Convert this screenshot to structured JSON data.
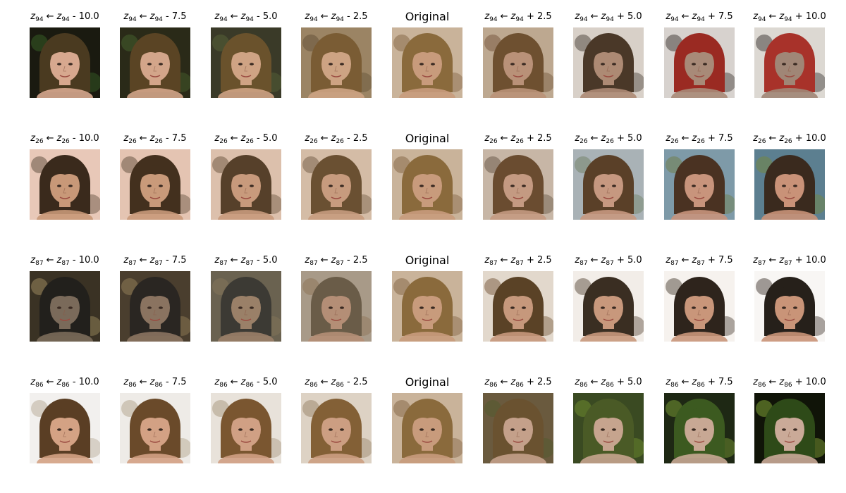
{
  "figure": {
    "rows": [
      {
        "latent": "94",
        "cells": [
          {
            "kind": "edit",
            "op": "-",
            "delta": "10.0",
            "bg": "#1a1a10",
            "hair": "#4a3a20",
            "skin": "#d7a88f",
            "accent": "#3c6b2a"
          },
          {
            "kind": "edit",
            "op": "-",
            "delta": "7.5",
            "bg": "#2a2a18",
            "hair": "#5a4424",
            "skin": "#d3a58a",
            "accent": "#4a6a30"
          },
          {
            "kind": "edit",
            "op": "-",
            "delta": "5.0",
            "bg": "#3a3a28",
            "hair": "#6a522c",
            "skin": "#cfa384",
            "accent": "#5d6b3a"
          },
          {
            "kind": "edit",
            "op": "-",
            "delta": "2.5",
            "bg": "#9b8464",
            "hair": "#7a5c34",
            "skin": "#cda383",
            "accent": "#5a4a30"
          },
          {
            "kind": "orig",
            "label": "Original",
            "bg": "#c9b39a",
            "hair": "#8a6a3c",
            "skin": "#c89b7c",
            "accent": "#7a5a3a"
          },
          {
            "kind": "edit",
            "op": "+",
            "delta": "2.5",
            "bg": "#bda890",
            "hair": "#6e5030",
            "skin": "#b99178",
            "accent": "#6a4a30"
          },
          {
            "kind": "edit",
            "op": "+",
            "delta": "5.0",
            "bg": "#d8d0c8",
            "hair": "#4a3828",
            "skin": "#ad8a74",
            "accent": "#3a3028"
          },
          {
            "kind": "edit",
            "op": "+",
            "delta": "7.5",
            "bg": "#d7d2ce",
            "hair": "#9a2a22",
            "skin": "#a88a78",
            "accent": "#2a2420"
          },
          {
            "kind": "edit",
            "op": "+",
            "delta": "10.0",
            "bg": "#dcd8d2",
            "hair": "#a8322a",
            "skin": "#a08676",
            "accent": "#262220"
          }
        ]
      },
      {
        "latent": "26",
        "cells": [
          {
            "kind": "edit",
            "op": "-",
            "delta": "10.0",
            "bg": "#e8c8b8",
            "hair": "#3a2a1c",
            "skin": "#c89878",
            "accent": "#4a3a2a"
          },
          {
            "kind": "edit",
            "op": "-",
            "delta": "7.5",
            "bg": "#e4c4b2",
            "hair": "#43301e",
            "skin": "#c99a7a",
            "accent": "#50402c"
          },
          {
            "kind": "edit",
            "op": "-",
            "delta": "5.0",
            "bg": "#dcc0ac",
            "hair": "#56402a",
            "skin": "#c89a7c",
            "accent": "#5a4630"
          },
          {
            "kind": "edit",
            "op": "-",
            "delta": "2.5",
            "bg": "#d4bca6",
            "hair": "#6a5032",
            "skin": "#c79b7e",
            "accent": "#66503a"
          },
          {
            "kind": "orig",
            "label": "Original",
            "bg": "#c9b39a",
            "hair": "#8a6a3c",
            "skin": "#c89b7c",
            "accent": "#7a5a3a"
          },
          {
            "kind": "edit",
            "op": "+",
            "delta": "2.5",
            "bg": "#c7b6a6",
            "hair": "#6a4c30",
            "skin": "#c49a82",
            "accent": "#5a4a3a"
          },
          {
            "kind": "edit",
            "op": "+",
            "delta": "5.0",
            "bg": "#a9b2b6",
            "hair": "#5a4028",
            "skin": "#c69880",
            "accent": "#6a7a5a"
          },
          {
            "kind": "edit",
            "op": "+",
            "delta": "7.5",
            "bg": "#7e9aa8",
            "hair": "#4a3222",
            "skin": "#c8947c",
            "accent": "#6f7a3a"
          },
          {
            "kind": "edit",
            "op": "+",
            "delta": "10.0",
            "bg": "#5c7f90",
            "hair": "#3a2a1e",
            "skin": "#c99278",
            "accent": "#7a8a30"
          }
        ]
      },
      {
        "latent": "87",
        "cells": [
          {
            "kind": "edit",
            "op": "-",
            "delta": "10.0",
            "bg": "#3a3224",
            "hair": "#22201c",
            "skin": "#7a6a5a",
            "accent": "#b09a6a"
          },
          {
            "kind": "edit",
            "op": "-",
            "delta": "7.5",
            "bg": "#4a3e2e",
            "hair": "#2a2622",
            "skin": "#8a7360",
            "accent": "#a08a60"
          },
          {
            "kind": "edit",
            "op": "-",
            "delta": "5.0",
            "bg": "#6a6250",
            "hair": "#3c3a34",
            "skin": "#9a8068",
            "accent": "#8a7a5a"
          },
          {
            "kind": "edit",
            "op": "-",
            "delta": "2.5",
            "bg": "#a89a88",
            "hair": "#6a5c48",
            "skin": "#b48e76",
            "accent": "#8a6e50"
          },
          {
            "kind": "orig",
            "label": "Original",
            "bg": "#c9b39a",
            "hair": "#8a6a3c",
            "skin": "#c89b7c",
            "accent": "#7a5a3a"
          },
          {
            "kind": "edit",
            "op": "+",
            "delta": "2.5",
            "bg": "#e2d8cc",
            "hair": "#5a4226",
            "skin": "#c6987c",
            "accent": "#6a4a2a"
          },
          {
            "kind": "edit",
            "op": "+",
            "delta": "5.0",
            "bg": "#f2ede8",
            "hair": "#3a2e22",
            "skin": "#c8987c",
            "accent": "#4a3a2a"
          },
          {
            "kind": "edit",
            "op": "+",
            "delta": "7.5",
            "bg": "#f6f2ee",
            "hair": "#2e241c",
            "skin": "#c9967a",
            "accent": "#3a2e22"
          },
          {
            "kind": "edit",
            "op": "+",
            "delta": "10.0",
            "bg": "#f8f6f4",
            "hair": "#26201a",
            "skin": "#c99478",
            "accent": "#30261e"
          }
        ]
      },
      {
        "latent": "86",
        "cells": [
          {
            "kind": "edit",
            "op": "-",
            "delta": "10.0",
            "bg": "#f2f0ee",
            "hair": "#5a3e24",
            "skin": "#d4a284",
            "accent": "#b0a08a"
          },
          {
            "kind": "edit",
            "op": "-",
            "delta": "7.5",
            "bg": "#eeebe7",
            "hair": "#6a4a2a",
            "skin": "#d3a184",
            "accent": "#a8987e"
          },
          {
            "kind": "edit",
            "op": "-",
            "delta": "5.0",
            "bg": "#e8e2da",
            "hair": "#7a5630",
            "skin": "#d0a084",
            "accent": "#a08e72"
          },
          {
            "kind": "edit",
            "op": "-",
            "delta": "2.5",
            "bg": "#ddd2c4",
            "hair": "#836036",
            "skin": "#cc9e82",
            "accent": "#907a5e"
          },
          {
            "kind": "orig",
            "label": "Original",
            "bg": "#c9b39a",
            "hair": "#8a6a3c",
            "skin": "#c89b7c",
            "accent": "#7a5a3a"
          },
          {
            "kind": "edit",
            "op": "+",
            "delta": "2.5",
            "bg": "#6a5a3e",
            "hair": "#6a5230",
            "skin": "#c4a08a",
            "accent": "#4e5a2a"
          },
          {
            "kind": "edit",
            "op": "+",
            "delta": "5.0",
            "bg": "#3a4a22",
            "hair": "#4a5a26",
            "skin": "#c6a48e",
            "accent": "#7a9a30"
          },
          {
            "kind": "edit",
            "op": "+",
            "delta": "7.5",
            "bg": "#1e2814",
            "hair": "#3c5a20",
            "skin": "#c8a894",
            "accent": "#8ab03a"
          },
          {
            "kind": "edit",
            "op": "+",
            "delta": "10.0",
            "bg": "#101408",
            "hair": "#2e4a18",
            "skin": "#caaa98",
            "accent": "#9ac040"
          }
        ]
      }
    ]
  }
}
